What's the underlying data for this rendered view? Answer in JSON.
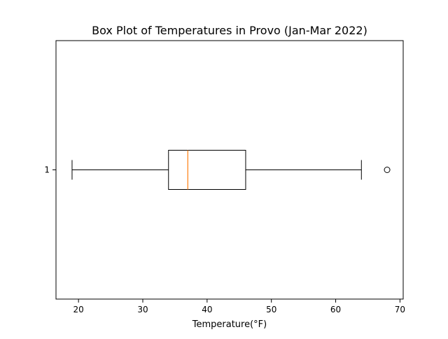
{
  "chart_data": {
    "type": "boxplot",
    "orientation": "horizontal",
    "title": "Box Plot of Temperatures in Provo (Jan-Mar 2022)",
    "xlabel": "Temperature(°F)",
    "ylabel": "",
    "xlim": [
      16.5,
      70.5
    ],
    "x_ticks": [
      20,
      30,
      40,
      50,
      60,
      70
    ],
    "x_tick_labels": [
      "20",
      "30",
      "40",
      "50",
      "60",
      "70"
    ],
    "categories": [
      "1"
    ],
    "boxes": [
      {
        "label": "1",
        "whisker_low": 19,
        "q1": 34,
        "median": 37,
        "q3": 46,
        "whisker_high": 64,
        "outliers": [
          68
        ]
      }
    ],
    "grid": false,
    "colors": {
      "box": "#000000",
      "median": "#ff7f0e",
      "outlier": "#000000"
    }
  }
}
